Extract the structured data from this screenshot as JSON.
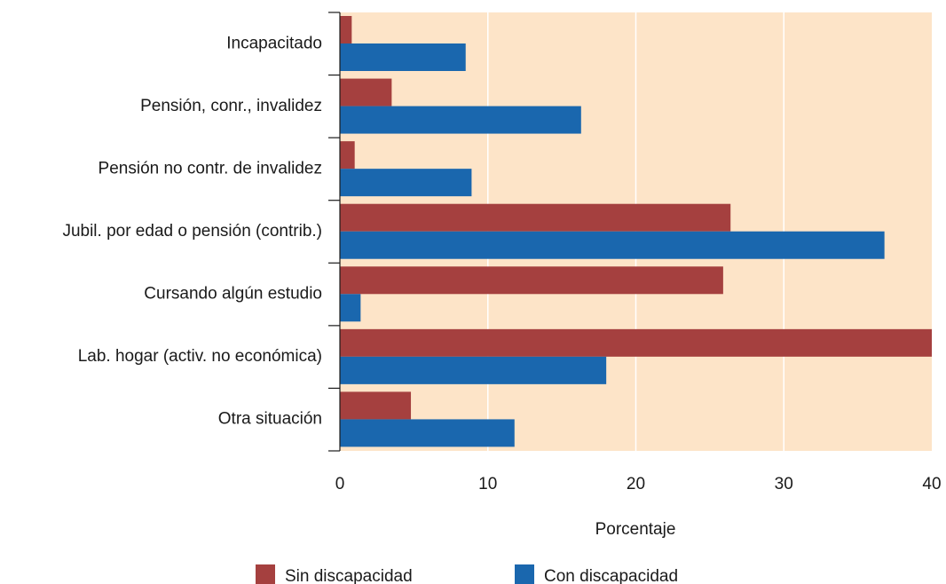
{
  "chart_data": {
    "type": "bar",
    "orientation": "horizontal",
    "categories": [
      "Incapacitado",
      "Pensión, conr., invalidez",
      "Pensión no contr. de invalidez",
      "Jubil. por edad o pensión (contrib.)",
      "Cursando algún estudio",
      "Lab. hogar (activ. no económica)",
      "Otra situación"
    ],
    "series": [
      {
        "name": "Sin discapacidad",
        "color": "#a5403f",
        "values": [
          0.8,
          3.5,
          1.0,
          26.4,
          25.9,
          40,
          4.8
        ]
      },
      {
        "name": "Con discapacidad",
        "color": "#1a67ae",
        "values": [
          8.5,
          16.3,
          8.9,
          36.8,
          1.4,
          18.0,
          11.8
        ]
      }
    ],
    "xlabel": "Porcentaje",
    "xlim": [
      0,
      40
    ],
    "xticks": [
      0,
      10,
      20,
      30,
      40
    ],
    "grid": true,
    "legend": "bottom"
  }
}
